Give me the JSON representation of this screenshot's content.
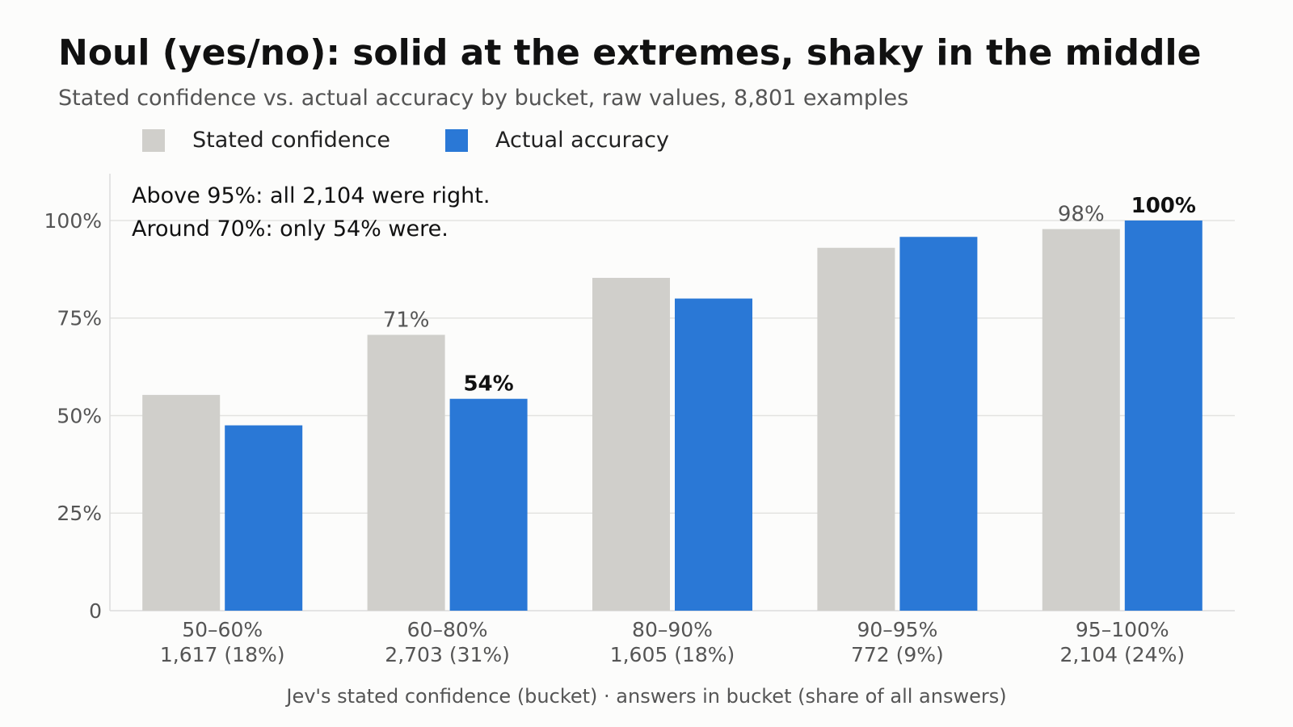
{
  "title": "Noul (yes/no): solid at the extremes, shaky in the middle",
  "subtitle": "Stated confidence vs. actual accuracy by bucket, raw values, 8,801 examples",
  "annotation": {
    "line1": "Above 95%: all 2,104 were right.",
    "line2": "Around 70%: only 54% were."
  },
  "colors": {
    "stated": "#d0cfcb",
    "actual": "#2a78d6",
    "grid": "#e3e3e1",
    "axis": "#dcdcdc"
  },
  "chart_data": {
    "type": "bar",
    "title": "Noul (yes/no): solid at the extremes, shaky in the middle",
    "xlabel": "Jev's stated confidence (bucket)  ·  answers in bucket (share of all answers)",
    "ylabel": "",
    "ylim": [
      0,
      1.12
    ],
    "yticks": [
      0,
      0.25,
      0.5,
      0.75,
      1.0
    ],
    "ytick_labels": [
      "0",
      "25%",
      "50%",
      "75%",
      "100%"
    ],
    "grid": true,
    "legend_position": "top-left",
    "categories": [
      "50–60%",
      "60–80%",
      "80–90%",
      "90–95%",
      "95–100%"
    ],
    "category_counts": [
      "1,617 (18%)",
      "2,703 (31%)",
      "1,605 (18%)",
      "772 (9%)",
      "2,104 (24%)"
    ],
    "series": [
      {
        "name": "Stated confidence",
        "values": [
          0.553,
          0.707,
          0.853,
          0.93,
          0.978
        ],
        "data_labels": [
          null,
          "71%",
          null,
          null,
          "98%"
        ]
      },
      {
        "name": "Actual accuracy",
        "values": [
          0.475,
          0.543,
          0.8,
          0.958,
          1.0
        ],
        "data_labels": [
          null,
          "54%",
          null,
          null,
          "100%"
        ]
      }
    ]
  }
}
